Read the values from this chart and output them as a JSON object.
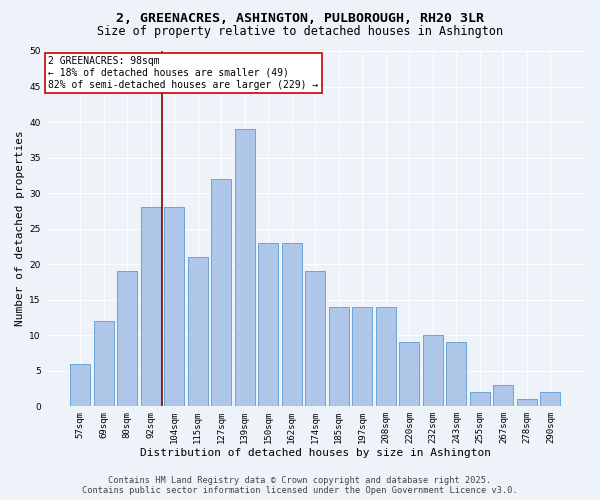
{
  "title_line1": "2, GREENACRES, ASHINGTON, PULBOROUGH, RH20 3LR",
  "title_line2": "Size of property relative to detached houses in Ashington",
  "xlabel": "Distribution of detached houses by size in Ashington",
  "ylabel": "Number of detached properties",
  "categories": [
    "57sqm",
    "69sqm",
    "80sqm",
    "92sqm",
    "104sqm",
    "115sqm",
    "127sqm",
    "139sqm",
    "150sqm",
    "162sqm",
    "174sqm",
    "185sqm",
    "197sqm",
    "208sqm",
    "220sqm",
    "232sqm",
    "243sqm",
    "255sqm",
    "267sqm",
    "278sqm",
    "290sqm"
  ],
  "bar_heights": [
    6,
    12,
    19,
    28,
    28,
    21,
    32,
    39,
    23,
    23,
    19,
    14,
    14,
    14,
    9,
    10,
    9,
    2,
    3,
    1,
    2
  ],
  "bar_color": "#aec6e8",
  "bar_edge_color": "#5b9bd5",
  "vline_color": "#8b0000",
  "annotation_title": "2 GREENACRES: 98sqm",
  "annotation_line2": "← 18% of detached houses are smaller (49)",
  "annotation_line3": "82% of semi-detached houses are larger (229) →",
  "annotation_box_color": "#ffffff",
  "annotation_box_edge": "#cc0000",
  "ylim": [
    0,
    50
  ],
  "yticks": [
    0,
    5,
    10,
    15,
    20,
    25,
    30,
    35,
    40,
    45,
    50
  ],
  "background_color": "#eef2f9",
  "grid_color": "#ffffff",
  "footer_line1": "Contains HM Land Registry data © Crown copyright and database right 2025.",
  "footer_line2": "Contains public sector information licensed under the Open Government Licence v3.0.",
  "title_fontsize": 9.5,
  "subtitle_fontsize": 8.5,
  "axis_label_fontsize": 8,
  "tick_fontsize": 6.5,
  "annotation_fontsize": 7,
  "footer_fontsize": 6.2
}
